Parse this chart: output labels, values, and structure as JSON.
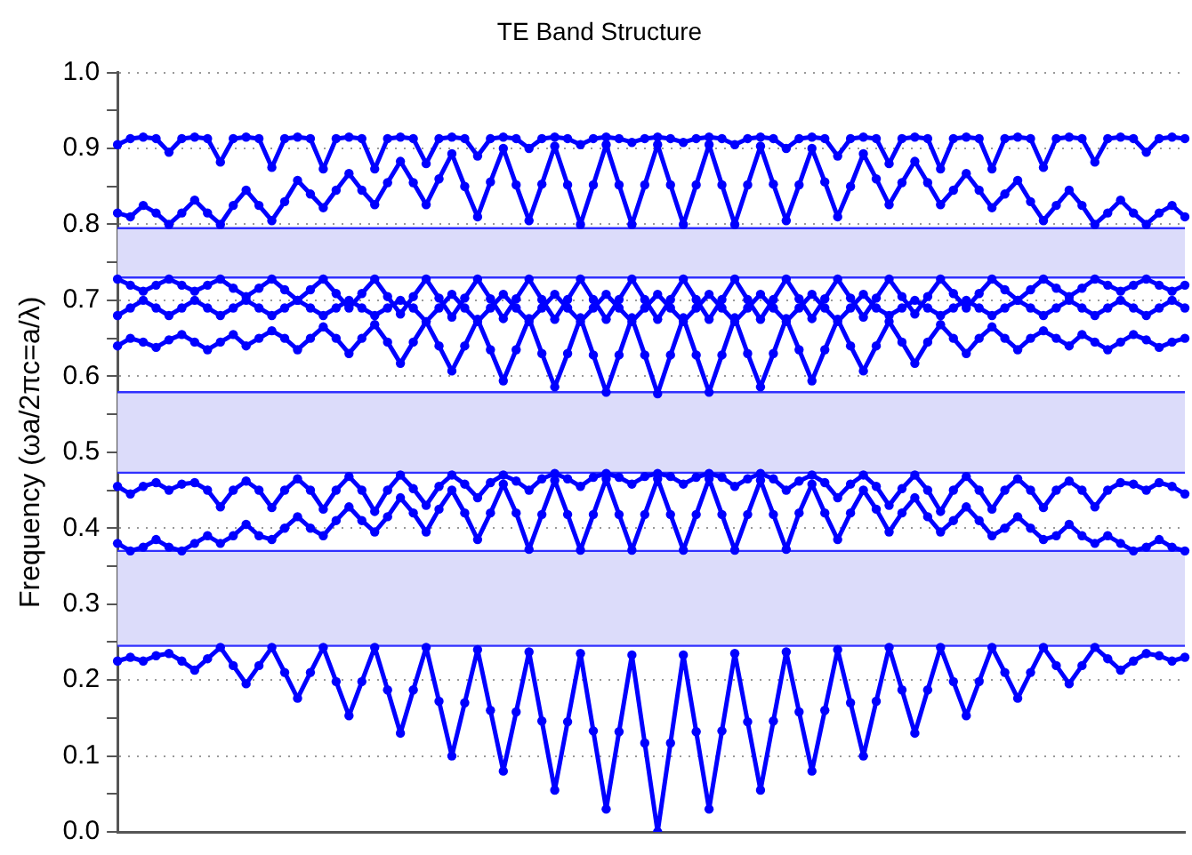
{
  "chart_data": {
    "type": "line",
    "title": "TE Band Structure",
    "ylabel": "Frequency (ωa/2πc=a/λ)",
    "categories": [
      null,
      null,
      null,
      null,
      null,
      null,
      null,
      null,
      null,
      null,
      null,
      null,
      null,
      null,
      null,
      null,
      null,
      null,
      null,
      null,
      null,
      null,
      null,
      null,
      null,
      null,
      null,
      null,
      null,
      null,
      null,
      null,
      null,
      null,
      null,
      null,
      null,
      null,
      null,
      null,
      null,
      null,
      null,
      null,
      null,
      null,
      null,
      null,
      null,
      null,
      null,
      null,
      null,
      null,
      null,
      null,
      null,
      null,
      null,
      null,
      null,
      null,
      null,
      null,
      null,
      null,
      null,
      null,
      null,
      null,
      null,
      null,
      null,
      null,
      null,
      null,
      null,
      null,
      null,
      null,
      null,
      null,
      null,
      null
    ],
    "series": [
      {
        "color": "#0000ff",
        "values": [
          0.225,
          0.23,
          0.225,
          0.232,
          0.235,
          0.225,
          0.213,
          0.228,
          0.243,
          0.219,
          0.195,
          0.219,
          0.243,
          0.21,
          0.176,
          0.21,
          0.243,
          0.198,
          0.153,
          0.198,
          0.243,
          0.187,
          0.13,
          0.187,
          0.243,
          0.172,
          0.1,
          0.17,
          0.24,
          0.16,
          0.08,
          0.158,
          0.237,
          0.146,
          0.055,
          0.145,
          0.235,
          0.133,
          0.03,
          0.132,
          0.233,
          0.117,
          0,
          0.117,
          0.233,
          0.132,
          0.03,
          0.133,
          0.235,
          0.145,
          0.055,
          0.146,
          0.237,
          0.158,
          0.08,
          0.16,
          0.24,
          0.17,
          0.1,
          0.172,
          0.243,
          0.187,
          0.13,
          0.187,
          0.243,
          0.198,
          0.153,
          0.198,
          0.243,
          0.21,
          0.176,
          0.21,
          0.243,
          0.219,
          0.195,
          0.219,
          0.243,
          0.228,
          0.213,
          0.225,
          0.235,
          0.232,
          0.225,
          0.23
        ]
      },
      {
        "color": "#0000ff",
        "values": [
          0.38,
          0.37,
          0.375,
          0.385,
          0.375,
          0.37,
          0.38,
          0.39,
          0.38,
          0.39,
          0.405,
          0.39,
          0.385,
          0.4,
          0.415,
          0.4,
          0.39,
          0.41,
          0.428,
          0.41,
          0.395,
          0.415,
          0.44,
          0.42,
          0.395,
          0.425,
          0.45,
          0.42,
          0.385,
          0.42,
          0.458,
          0.42,
          0.372,
          0.418,
          0.463,
          0.418,
          0.371,
          0.418,
          0.465,
          0.418,
          0.371,
          0.418,
          0.465,
          0.418,
          0.371,
          0.418,
          0.465,
          0.418,
          0.371,
          0.418,
          0.463,
          0.418,
          0.372,
          0.42,
          0.458,
          0.42,
          0.385,
          0.42,
          0.45,
          0.425,
          0.395,
          0.42,
          0.44,
          0.415,
          0.395,
          0.41,
          0.428,
          0.41,
          0.39,
          0.4,
          0.415,
          0.4,
          0.385,
          0.39,
          0.405,
          0.39,
          0.38,
          0.39,
          0.38,
          0.37,
          0.375,
          0.385,
          0.375,
          0.37
        ]
      },
      {
        "color": "#0000ff",
        "values": [
          0.455,
          0.445,
          0.455,
          0.46,
          0.45,
          0.458,
          0.46,
          0.45,
          0.428,
          0.45,
          0.462,
          0.45,
          0.427,
          0.45,
          0.465,
          0.45,
          0.425,
          0.45,
          0.468,
          0.45,
          0.422,
          0.45,
          0.47,
          0.452,
          0.43,
          0.455,
          0.47,
          0.458,
          0.44,
          0.46,
          0.47,
          0.462,
          0.45,
          0.465,
          0.472,
          0.465,
          0.455,
          0.467,
          0.472,
          0.467,
          0.458,
          0.468,
          0.472,
          0.468,
          0.458,
          0.467,
          0.472,
          0.467,
          0.455,
          0.465,
          0.472,
          0.465,
          0.45,
          0.462,
          0.47,
          0.46,
          0.44,
          0.458,
          0.47,
          0.455,
          0.43,
          0.452,
          0.47,
          0.45,
          0.422,
          0.45,
          0.468,
          0.45,
          0.425,
          0.45,
          0.465,
          0.45,
          0.427,
          0.45,
          0.462,
          0.45,
          0.428,
          0.45,
          0.46,
          0.458,
          0.45,
          0.46,
          0.455,
          0.445
        ]
      },
      {
        "color": "#0000ff",
        "values": [
          0.64,
          0.65,
          0.645,
          0.638,
          0.648,
          0.655,
          0.645,
          0.635,
          0.645,
          0.655,
          0.64,
          0.65,
          0.66,
          0.65,
          0.635,
          0.65,
          0.665,
          0.65,
          0.63,
          0.65,
          0.668,
          0.645,
          0.617,
          0.645,
          0.672,
          0.64,
          0.607,
          0.64,
          0.675,
          0.635,
          0.594,
          0.635,
          0.676,
          0.63,
          0.586,
          0.63,
          0.677,
          0.628,
          0.579,
          0.628,
          0.677,
          0.628,
          0.577,
          0.628,
          0.677,
          0.628,
          0.579,
          0.628,
          0.677,
          0.63,
          0.586,
          0.63,
          0.676,
          0.635,
          0.594,
          0.635,
          0.675,
          0.64,
          0.607,
          0.64,
          0.672,
          0.645,
          0.617,
          0.645,
          0.668,
          0.65,
          0.63,
          0.65,
          0.665,
          0.65,
          0.635,
          0.65,
          0.66,
          0.65,
          0.64,
          0.655,
          0.645,
          0.635,
          0.645,
          0.655,
          0.648,
          0.638,
          0.645,
          0.65
        ]
      },
      {
        "color": "#0000ff",
        "values": [
          0.68,
          0.69,
          0.7,
          0.69,
          0.68,
          0.69,
          0.7,
          0.69,
          0.68,
          0.69,
          0.7,
          0.69,
          0.68,
          0.69,
          0.7,
          0.69,
          0.68,
          0.69,
          0.7,
          0.69,
          0.68,
          0.69,
          0.7,
          0.69,
          0.672,
          0.69,
          0.708,
          0.69,
          0.672,
          0.69,
          0.708,
          0.69,
          0.672,
          0.69,
          0.708,
          0.69,
          0.672,
          0.69,
          0.708,
          0.69,
          0.672,
          0.69,
          0.708,
          0.69,
          0.672,
          0.69,
          0.708,
          0.69,
          0.672,
          0.69,
          0.708,
          0.69,
          0.672,
          0.69,
          0.708,
          0.69,
          0.672,
          0.69,
          0.708,
          0.69,
          0.68,
          0.69,
          0.7,
          0.69,
          0.68,
          0.69,
          0.7,
          0.69,
          0.68,
          0.69,
          0.7,
          0.69,
          0.68,
          0.69,
          0.7,
          0.69,
          0.68,
          0.69,
          0.7,
          0.69,
          0.68,
          0.69,
          0.7,
          0.69
        ]
      },
      {
        "color": "#0000ff",
        "values": [
          0.728,
          0.72,
          0.712,
          0.72,
          0.728,
          0.72,
          0.712,
          0.72,
          0.728,
          0.716,
          0.705,
          0.716,
          0.728,
          0.714,
          0.7,
          0.714,
          0.728,
          0.709,
          0.69,
          0.709,
          0.728,
          0.705,
          0.682,
          0.705,
          0.728,
          0.703,
          0.678,
          0.703,
          0.728,
          0.702,
          0.676,
          0.702,
          0.728,
          0.701,
          0.675,
          0.701,
          0.728,
          0.701,
          0.675,
          0.701,
          0.728,
          0.701,
          0.675,
          0.701,
          0.728,
          0.701,
          0.675,
          0.701,
          0.728,
          0.701,
          0.675,
          0.701,
          0.728,
          0.702,
          0.676,
          0.702,
          0.728,
          0.703,
          0.678,
          0.703,
          0.728,
          0.705,
          0.682,
          0.705,
          0.728,
          0.709,
          0.69,
          0.709,
          0.728,
          0.714,
          0.7,
          0.714,
          0.728,
          0.716,
          0.705,
          0.716,
          0.728,
          0.72,
          0.712,
          0.72,
          0.728,
          0.72,
          0.712,
          0.72
        ]
      },
      {
        "color": "#0000ff",
        "values": [
          0.815,
          0.81,
          0.825,
          0.815,
          0.8,
          0.815,
          0.832,
          0.815,
          0.8,
          0.825,
          0.845,
          0.825,
          0.805,
          0.83,
          0.858,
          0.84,
          0.822,
          0.845,
          0.867,
          0.845,
          0.826,
          0.855,
          0.883,
          0.855,
          0.826,
          0.86,
          0.893,
          0.85,
          0.81,
          0.856,
          0.9,
          0.852,
          0.805,
          0.853,
          0.903,
          0.852,
          0.8,
          0.852,
          0.905,
          0.852,
          0.8,
          0.852,
          0.905,
          0.852,
          0.8,
          0.852,
          0.905,
          0.852,
          0.8,
          0.852,
          0.903,
          0.853,
          0.805,
          0.852,
          0.9,
          0.856,
          0.81,
          0.85,
          0.893,
          0.86,
          0.826,
          0.855,
          0.883,
          0.855,
          0.826,
          0.845,
          0.867,
          0.845,
          0.822,
          0.84,
          0.858,
          0.83,
          0.805,
          0.825,
          0.845,
          0.825,
          0.8,
          0.815,
          0.832,
          0.815,
          0.8,
          0.815,
          0.825,
          0.81
        ]
      },
      {
        "color": "#0000ff",
        "values": [
          0.905,
          0.913,
          0.915,
          0.913,
          0.895,
          0.913,
          0.915,
          0.913,
          0.882,
          0.913,
          0.915,
          0.913,
          0.875,
          0.913,
          0.915,
          0.913,
          0.873,
          0.913,
          0.915,
          0.913,
          0.873,
          0.913,
          0.915,
          0.913,
          0.88,
          0.913,
          0.915,
          0.913,
          0.89,
          0.913,
          0.915,
          0.913,
          0.9,
          0.913,
          0.915,
          0.913,
          0.905,
          0.913,
          0.915,
          0.913,
          0.908,
          0.913,
          0.915,
          0.913,
          0.908,
          0.913,
          0.915,
          0.913,
          0.905,
          0.913,
          0.915,
          0.913,
          0.9,
          0.913,
          0.915,
          0.913,
          0.89,
          0.913,
          0.915,
          0.913,
          0.88,
          0.913,
          0.915,
          0.913,
          0.873,
          0.913,
          0.915,
          0.913,
          0.873,
          0.913,
          0.915,
          0.913,
          0.875,
          0.913,
          0.915,
          0.913,
          0.882,
          0.913,
          0.915,
          0.913,
          0.895,
          0.913,
          0.915,
          0.913
        ]
      }
    ],
    "ylim": [
      0,
      1
    ],
    "yticks": [
      {
        "value": 0,
        "label": "0.0"
      },
      {
        "value": 0.05,
        "label": null
      },
      {
        "value": 0.1,
        "label": "0.1"
      },
      {
        "value": 0.15,
        "label": null
      },
      {
        "value": 0.2,
        "label": "0.2"
      },
      {
        "value": 0.25,
        "label": null
      },
      {
        "value": 0.3,
        "label": "0.3"
      },
      {
        "value": 0.35,
        "label": null
      },
      {
        "value": 0.4,
        "label": "0.4"
      },
      {
        "value": 0.45,
        "label": null
      },
      {
        "value": 0.5,
        "label": "0.5"
      },
      {
        "value": 0.55,
        "label": null
      },
      {
        "value": 0.6,
        "label": "0.6"
      },
      {
        "value": 0.65,
        "label": null
      },
      {
        "value": 0.7,
        "label": "0.7"
      },
      {
        "value": 0.75,
        "label": null
      },
      {
        "value": 0.8,
        "label": "0.8"
      },
      {
        "value": 0.85,
        "label": null
      },
      {
        "value": 0.9,
        "label": "0.9"
      },
      {
        "value": 0.95,
        "label": null
      },
      {
        "value": 1,
        "label": "1.0"
      }
    ],
    "bands": [
      {
        "axis": "y",
        "from": 0.245,
        "to": 0.37,
        "color": "#dcdcfa"
      },
      {
        "axis": "y",
        "from": 0.473,
        "to": 0.579,
        "color": "#dcdcfa"
      },
      {
        "axis": "y",
        "from": 0.73,
        "to": 0.795,
        "color": "#dcdcfa"
      }
    ],
    "ref_lines": [
      {
        "axis": "y",
        "value": 0.245,
        "color": "#3030ff"
      },
      {
        "axis": "y",
        "value": 0.37,
        "color": "#3030ff"
      },
      {
        "axis": "y",
        "value": 0.473,
        "color": "#3030ff"
      },
      {
        "axis": "y",
        "value": 0.579,
        "color": "#3030ff"
      },
      {
        "axis": "y",
        "value": 0.73,
        "color": "#3030ff"
      },
      {
        "axis": "y",
        "value": 0.795,
        "color": "#3030ff"
      }
    ],
    "grid": "y",
    "legend": false,
    "tick_labels": "y",
    "marker": "circle",
    "line_style": "solid"
  }
}
